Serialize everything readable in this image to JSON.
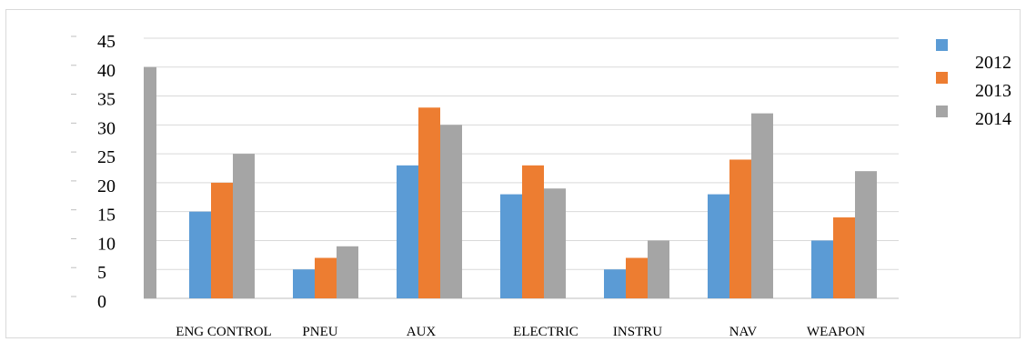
{
  "chart_data": {
    "type": "bar",
    "categories": [
      "ENG CONTROL",
      "PNEU",
      "AUX",
      "ELECTRIC",
      "INSTRU",
      "NAV",
      "WEAPON"
    ],
    "series": [
      {
        "name": "2012",
        "color": "#5b9bd5",
        "values": [
          15,
          5,
          23,
          18,
          5,
          18,
          10
        ]
      },
      {
        "name": "2013",
        "color": "#ed7d31",
        "values": [
          20,
          7,
          33,
          23,
          7,
          24,
          14
        ]
      },
      {
        "name": "2014",
        "color": "#a5a5a5",
        "values": [
          25,
          9,
          30,
          19,
          10,
          32,
          22
        ]
      }
    ],
    "extra_bar": {
      "category_index": 0,
      "value": 40,
      "color": "#a5a5a5"
    },
    "y_ticks": [
      "0",
      "5",
      "10",
      "15",
      "20",
      "25",
      "30",
      "35",
      "40",
      "45"
    ],
    "ylim": [
      0,
      45
    ],
    "grid": true,
    "legend_position": "top-right"
  }
}
